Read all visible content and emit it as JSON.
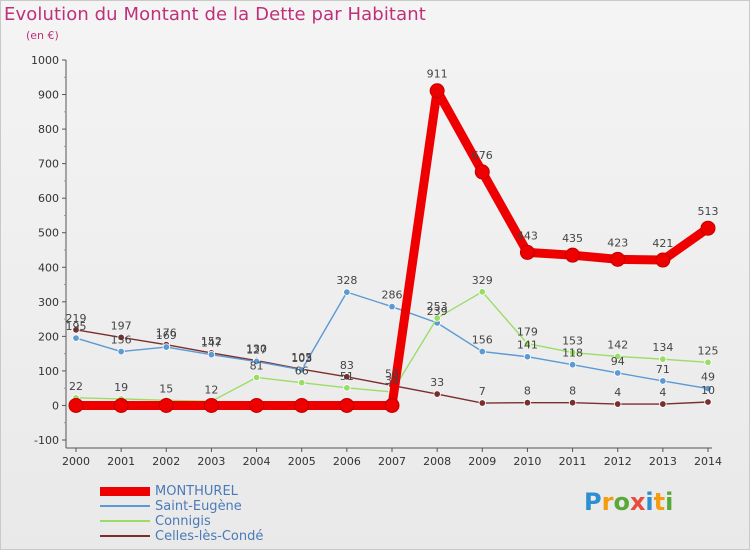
{
  "header": {
    "title": "Evolution du Montant de la Dette par Habitant",
    "unit": "(en €)"
  },
  "logo": {
    "text": "Proxiti",
    "colors": [
      "#2b8fd1",
      "#f39c12",
      "#58a83a",
      "#e74c3c",
      "#2b8fd1",
      "#f39c12",
      "#58a83a"
    ]
  },
  "colors": {
    "title": "#c0307a",
    "axis": "#555555",
    "legend_text": "#4a7ab8"
  },
  "chart_data": {
    "type": "line",
    "title": "Evolution du Montant de la Dette par Habitant",
    "ylabel": "(en €)",
    "xlabel": "",
    "ylim": [
      -100,
      1000
    ],
    "yticks": [
      -100,
      0,
      100,
      200,
      300,
      400,
      500,
      600,
      700,
      800,
      900,
      1000
    ],
    "categories": [
      "2000",
      "2001",
      "2002",
      "2003",
      "2004",
      "2005",
      "2006",
      "2007",
      "2008",
      "2009",
      "2010",
      "2011",
      "2012",
      "2013",
      "2014"
    ],
    "series": [
      {
        "name": "MONTHUREL",
        "color": "#ee0000",
        "emphasis": true,
        "values": [
          0,
          0,
          0,
          0,
          0,
          0,
          0,
          0,
          911,
          676,
          443,
          435,
          423,
          421,
          513
        ]
      },
      {
        "name": "Saint-Eugène",
        "color": "#5b9ad3",
        "emphasis": false,
        "values": [
          195,
          156,
          169,
          147,
          127,
          103,
          328,
          286,
          239,
          156,
          141,
          118,
          94,
          71,
          49
        ]
      },
      {
        "name": "Connigis",
        "color": "#99dd66",
        "emphasis": false,
        "values": [
          22,
          19,
          15,
          12,
          81,
          66,
          51,
          39,
          253,
          329,
          179,
          153,
          142,
          134,
          125
        ]
      },
      {
        "name": "Celles-lès-Condé",
        "color": "#7a2e2e",
        "emphasis": false,
        "values": [
          219,
          197,
          176,
          152,
          130,
          105,
          83,
          58,
          33,
          7,
          8,
          8,
          4,
          4,
          10
        ]
      }
    ]
  }
}
